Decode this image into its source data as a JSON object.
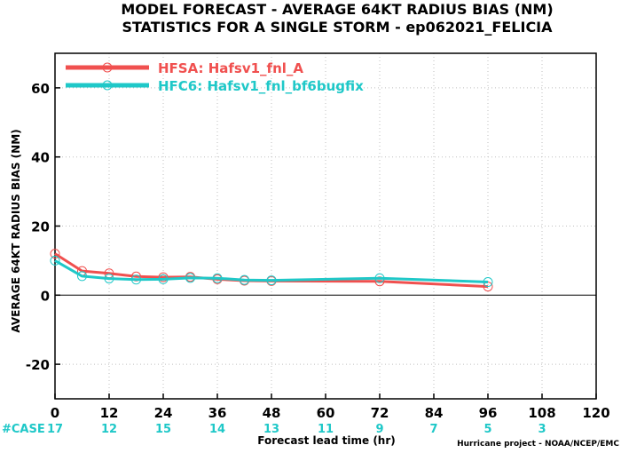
{
  "chart_data": {
    "type": "line",
    "title": "MODEL FORECAST - AVERAGE 64KT RADIUS BIAS (NM)",
    "subtitle": "STATISTICS FOR A SINGLE STORM - ep062021_FELICIA",
    "xlabel": "Forecast lead time (hr)",
    "ylabel": "AVERAGE 64KT RADIUS BIAS (NM)",
    "xlim": [
      0,
      120
    ],
    "ylim": [
      -30,
      70
    ],
    "xticks": [
      0,
      12,
      24,
      36,
      48,
      60,
      72,
      84,
      96,
      108,
      120
    ],
    "yticks": [
      -20,
      0,
      20,
      40,
      60
    ],
    "grid": true,
    "legend_position": "top-left",
    "series": [
      {
        "name": "HFSA: Hafsv1_fnl_A",
        "color": "#f0504f",
        "x": [
          0,
          6,
          12,
          18,
          24,
          30,
          36,
          42,
          48,
          72,
          96
        ],
        "y": [
          12.0,
          7.0,
          6.3,
          5.4,
          5.2,
          5.3,
          4.6,
          4.2,
          4.1,
          4.0,
          2.5
        ]
      },
      {
        "name": "HFC6: Hafsv1_fnl_bf6bugfix",
        "color": "#1fc8c8",
        "x": [
          0,
          6,
          12,
          18,
          24,
          30,
          36,
          42,
          48,
          72,
          96
        ],
        "y": [
          10.0,
          5.5,
          4.8,
          4.5,
          4.6,
          5.0,
          4.9,
          4.4,
          4.3,
          4.9,
          3.8
        ]
      }
    ],
    "case_label": "#CASE",
    "case_counts": [
      {
        "x": 0,
        "value": "17"
      },
      {
        "x": 12,
        "value": "12"
      },
      {
        "x": 24,
        "value": "15"
      },
      {
        "x": 36,
        "value": "14"
      },
      {
        "x": 48,
        "value": "13"
      },
      {
        "x": 60,
        "value": "11"
      },
      {
        "x": 72,
        "value": "9"
      },
      {
        "x": 84,
        "value": "7"
      },
      {
        "x": 96,
        "value": "5"
      },
      {
        "x": 108,
        "value": "3"
      }
    ],
    "credit": "Hurricane project - NOAA/NCEP/EMC",
    "case_color": "#1fc8c8",
    "case_label_color": "#1fc8c8"
  }
}
